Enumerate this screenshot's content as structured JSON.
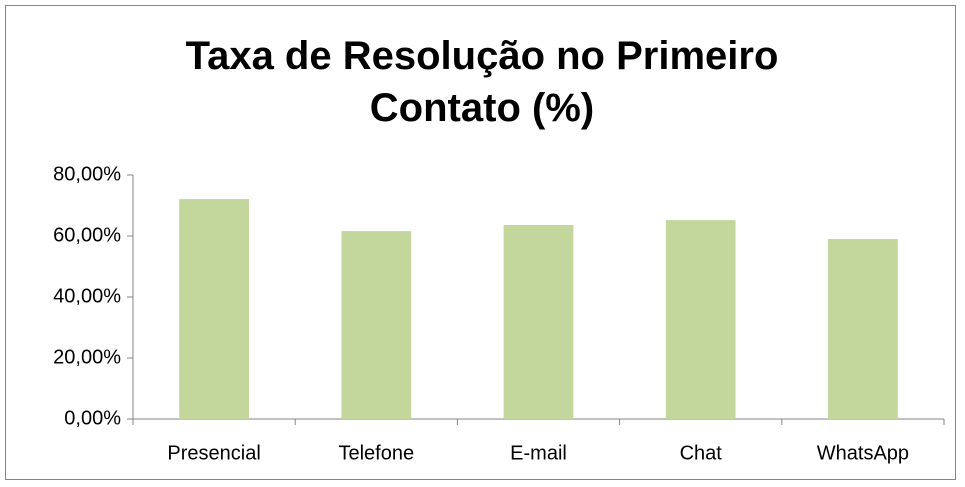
{
  "chart_data": {
    "type": "bar",
    "title": "Taxa de Resolução no Primeiro Contato (%)",
    "categories": [
      "Presencial",
      "Telefone",
      "E-mail",
      "Chat",
      "WhatsApp"
    ],
    "values": [
      72.1,
      61.6,
      63.6,
      65.2,
      59.0
    ],
    "color": "#c3d69b",
    "ylim": [
      0,
      80
    ],
    "yticks": [
      {
        "value": 0,
        "label": "0,00%"
      },
      {
        "value": 20,
        "label": "20,00%"
      },
      {
        "value": 40,
        "label": "40,00%"
      },
      {
        "value": 60,
        "label": "60,00%"
      },
      {
        "value": 80,
        "label": "80,00%"
      }
    ],
    "grid": false
  }
}
